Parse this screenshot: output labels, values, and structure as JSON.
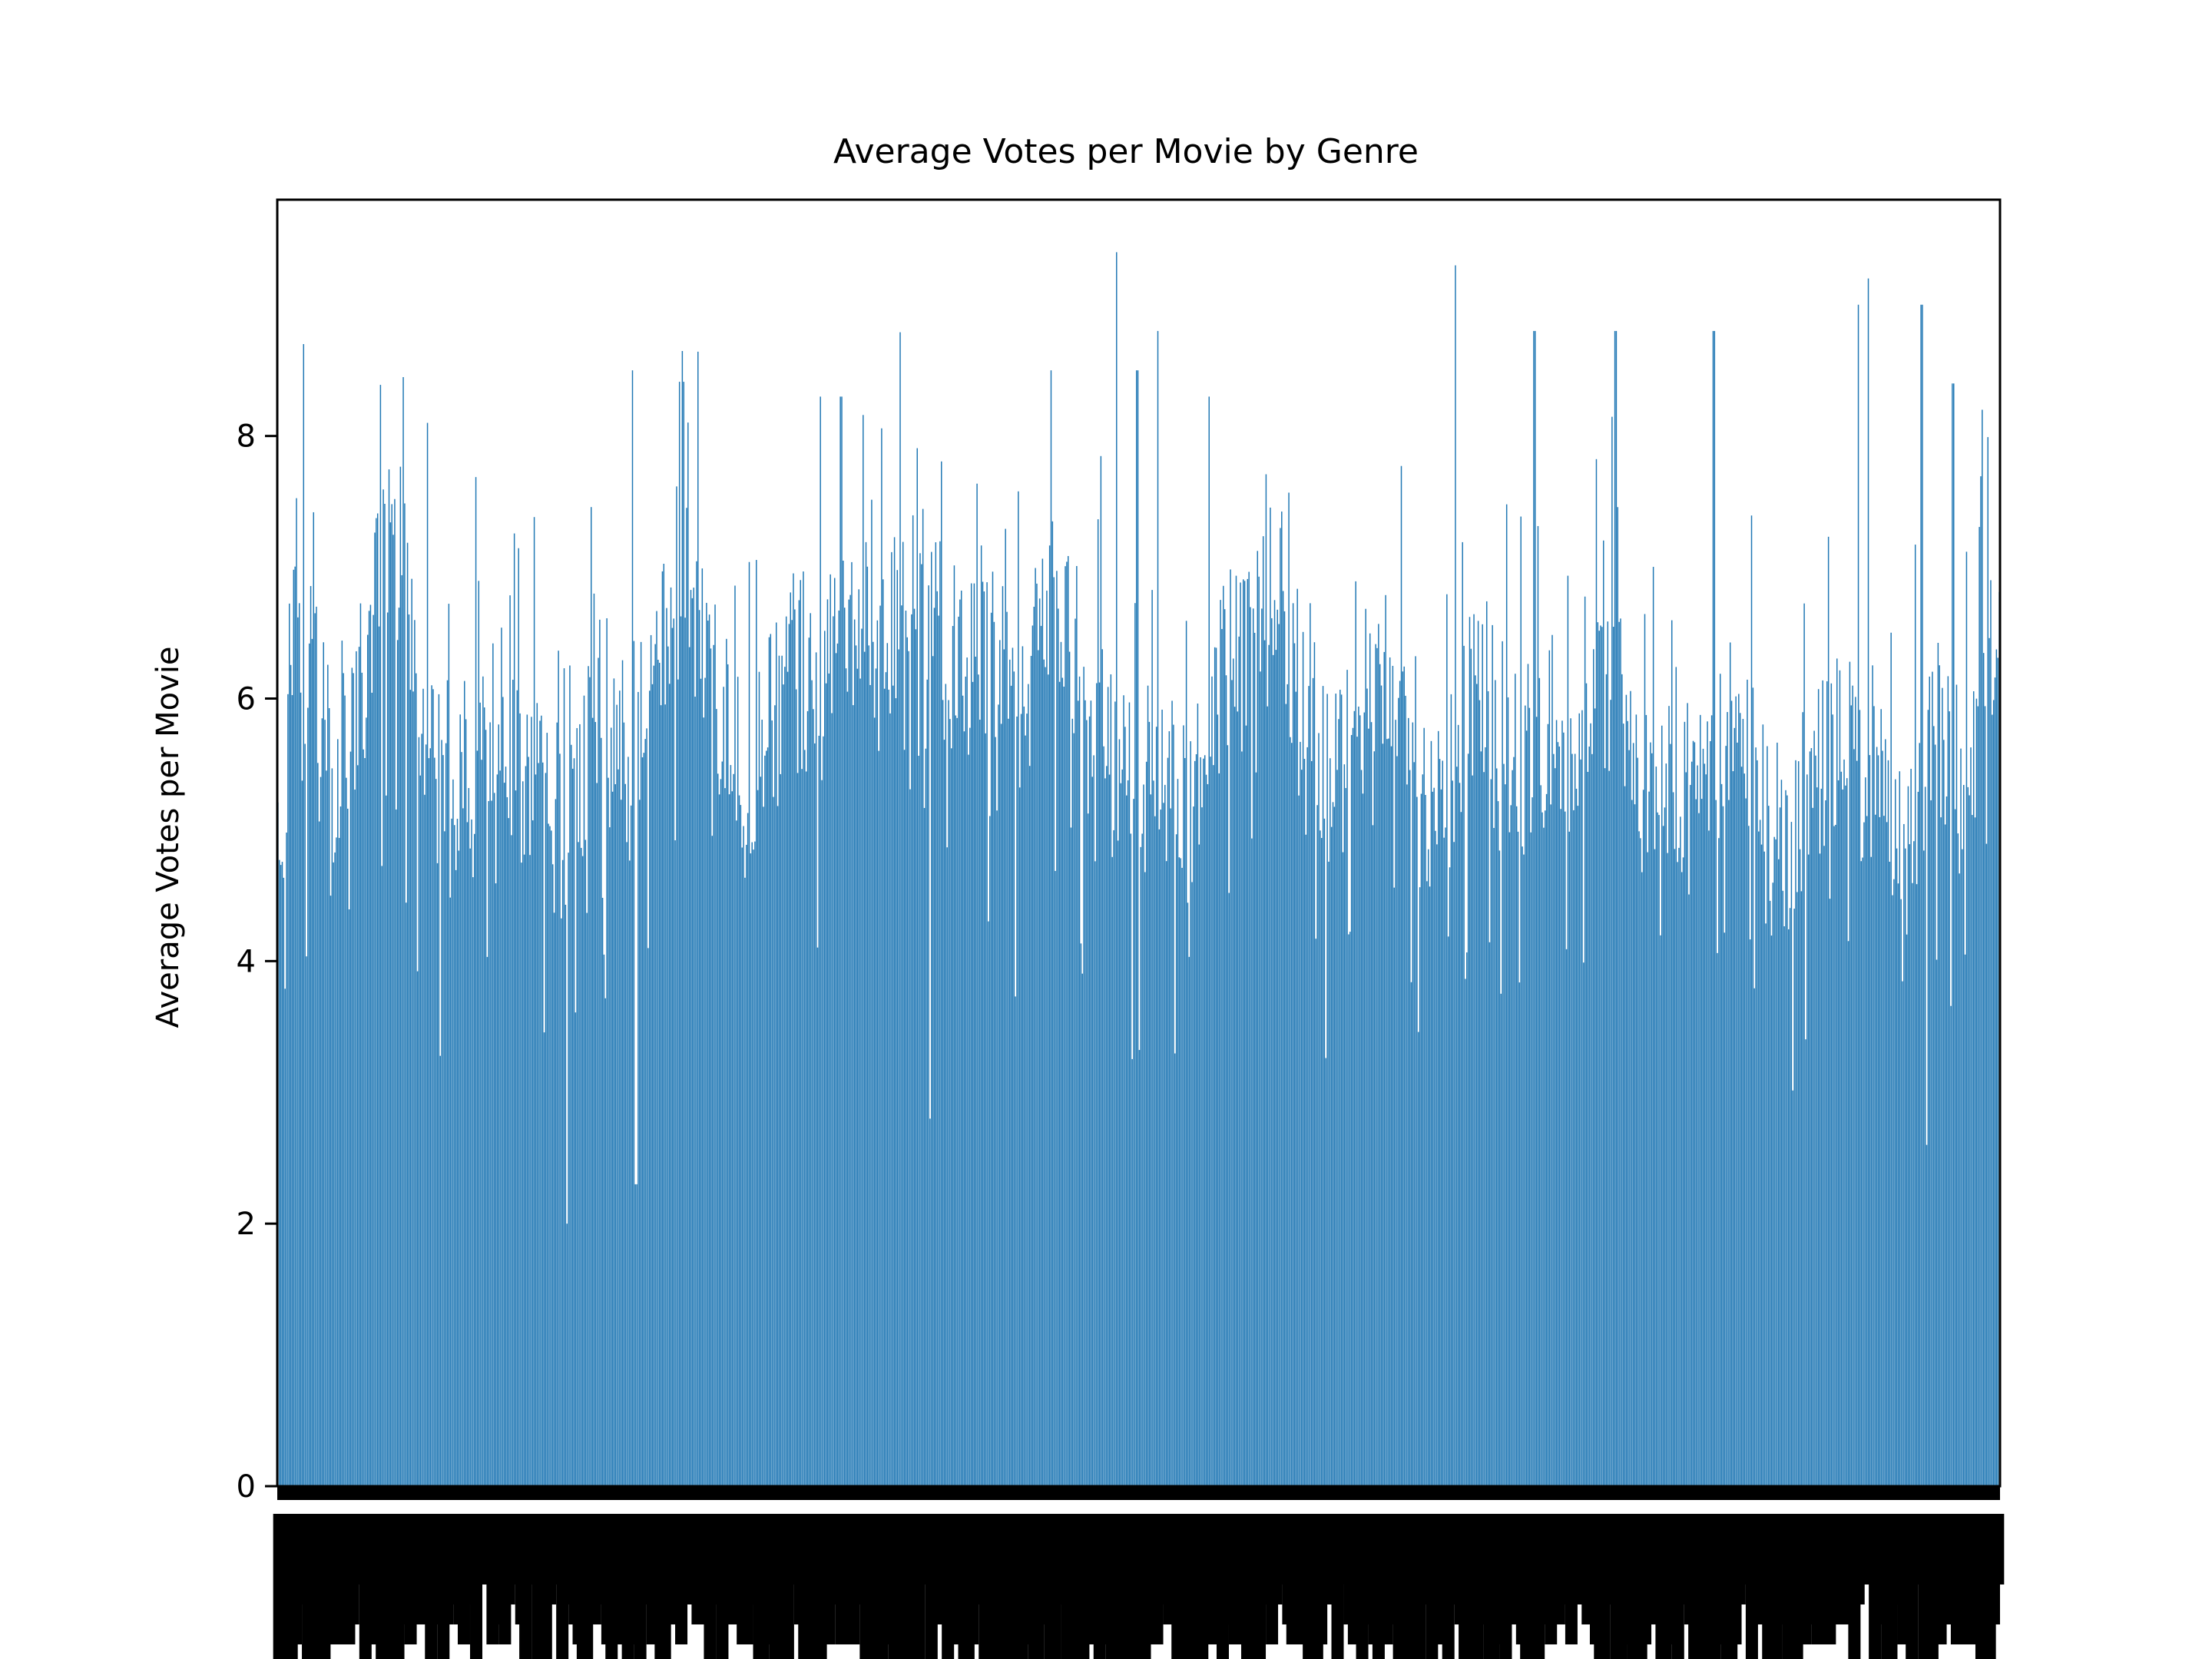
{
  "chart_data": {
    "type": "bar",
    "title": "Average Votes per Movie by Genre",
    "xlabel": "",
    "ylabel": "Average Votes per Movie",
    "ylim": [
      0,
      9.8
    ],
    "yticks": [
      0,
      2,
      4,
      6,
      8
    ],
    "grid": false,
    "bar_color": "#1f77b4",
    "bar_count": 1210,
    "anchor_values": [
      [
        0.0,
        4.6
      ],
      [
        0.004,
        5.2
      ],
      [
        0.008,
        6.6
      ],
      [
        0.012,
        7.1
      ],
      [
        0.016,
        5.5
      ],
      [
        0.02,
        7.0
      ],
      [
        0.024,
        5.8
      ],
      [
        0.028,
        6.2
      ],
      [
        0.033,
        5.2
      ],
      [
        0.036,
        5.7
      ],
      [
        0.04,
        5.8
      ],
      [
        0.05,
        6.2
      ],
      [
        0.06,
        7.0
      ],
      [
        0.07,
        7.2
      ],
      [
        0.08,
        6.0
      ],
      [
        0.09,
        5.6
      ],
      [
        0.1,
        5.2
      ],
      [
        0.11,
        5.5
      ],
      [
        0.12,
        6.0
      ],
      [
        0.13,
        5.8
      ],
      [
        0.14,
        5.4
      ],
      [
        0.15,
        5.6
      ],
      [
        0.16,
        5.1
      ],
      [
        0.17,
        5.0
      ],
      [
        0.18,
        5.6
      ],
      [
        0.19,
        6.0
      ],
      [
        0.2,
        5.6
      ],
      [
        0.21,
        5.8
      ],
      [
        0.22,
        6.4
      ],
      [
        0.23,
        6.7
      ],
      [
        0.24,
        6.9
      ],
      [
        0.25,
        6.2
      ],
      [
        0.26,
        5.8
      ],
      [
        0.27,
        5.3
      ],
      [
        0.28,
        5.6
      ],
      [
        0.29,
        5.9
      ],
      [
        0.3,
        6.8
      ],
      [
        0.31,
        5.9
      ],
      [
        0.32,
        6.2
      ],
      [
        0.33,
        6.7
      ],
      [
        0.34,
        6.6
      ],
      [
        0.35,
        6.2
      ],
      [
        0.36,
        6.7
      ],
      [
        0.37,
        6.9
      ],
      [
        0.38,
        6.5
      ],
      [
        0.39,
        6.4
      ],
      [
        0.4,
        6.0
      ],
      [
        0.41,
        6.5
      ],
      [
        0.42,
        6.2
      ],
      [
        0.43,
        5.9
      ],
      [
        0.44,
        6.6
      ],
      [
        0.45,
        7.0
      ],
      [
        0.46,
        6.5
      ],
      [
        0.47,
        6.0
      ],
      [
        0.48,
        5.8
      ],
      [
        0.49,
        5.3
      ],
      [
        0.5,
        5.2
      ],
      [
        0.51,
        5.6
      ],
      [
        0.52,
        5.4
      ],
      [
        0.53,
        5.0
      ],
      [
        0.54,
        5.5
      ],
      [
        0.55,
        6.4
      ],
      [
        0.56,
        6.2
      ],
      [
        0.57,
        6.9
      ],
      [
        0.58,
        7.1
      ],
      [
        0.59,
        6.2
      ],
      [
        0.6,
        5.8
      ],
      [
        0.61,
        5.4
      ],
      [
        0.62,
        5.9
      ],
      [
        0.63,
        6.0
      ],
      [
        0.64,
        6.4
      ],
      [
        0.65,
        6.3
      ],
      [
        0.66,
        5.4
      ],
      [
        0.67,
        5.0
      ],
      [
        0.68,
        5.2
      ],
      [
        0.69,
        5.8
      ],
      [
        0.7,
        6.2
      ],
      [
        0.71,
        5.8
      ],
      [
        0.72,
        5.4
      ],
      [
        0.73,
        5.6
      ],
      [
        0.74,
        5.4
      ],
      [
        0.75,
        5.5
      ],
      [
        0.76,
        5.8
      ],
      [
        0.77,
        6.1
      ],
      [
        0.78,
        6.2
      ],
      [
        0.79,
        5.2
      ],
      [
        0.8,
        5.5
      ],
      [
        0.81,
        5.6
      ],
      [
        0.82,
        5.2
      ],
      [
        0.83,
        5.6
      ],
      [
        0.84,
        5.9
      ],
      [
        0.85,
        5.3
      ],
      [
        0.86,
        5.4
      ],
      [
        0.87,
        4.5
      ],
      [
        0.88,
        5.0
      ],
      [
        0.89,
        5.4
      ],
      [
        0.9,
        5.5
      ],
      [
        0.91,
        5.8
      ],
      [
        0.92,
        5.2
      ],
      [
        0.93,
        5.8
      ],
      [
        0.94,
        4.7
      ],
      [
        0.95,
        5.0
      ],
      [
        0.96,
        5.8
      ],
      [
        0.97,
        5.7
      ],
      [
        0.98,
        5.4
      ],
      [
        0.99,
        5.8
      ],
      [
        1.0,
        6.5
      ]
    ],
    "peaks": [
      [
        0.015,
        8.7
      ],
      [
        0.087,
        8.1
      ],
      [
        0.206,
        8.5
      ],
      [
        0.315,
        8.3
      ],
      [
        0.327,
        8.3
      ],
      [
        0.449,
        8.5
      ],
      [
        0.487,
        9.4
      ],
      [
        0.499,
        8.5
      ],
      [
        0.511,
        8.8
      ],
      [
        0.541,
        8.3
      ],
      [
        0.684,
        9.3
      ],
      [
        0.73,
        8.8
      ],
      [
        0.777,
        8.8
      ],
      [
        0.834,
        8.8
      ],
      [
        0.918,
        9.0
      ],
      [
        0.924,
        9.2
      ],
      [
        0.955,
        9.0
      ],
      [
        0.973,
        8.4
      ],
      [
        0.99,
        8.2
      ]
    ],
    "dips": [
      [
        0.168,
        2.0
      ],
      [
        0.208,
        2.3
      ],
      [
        0.379,
        2.8
      ],
      [
        0.958,
        2.6
      ]
    ]
  }
}
